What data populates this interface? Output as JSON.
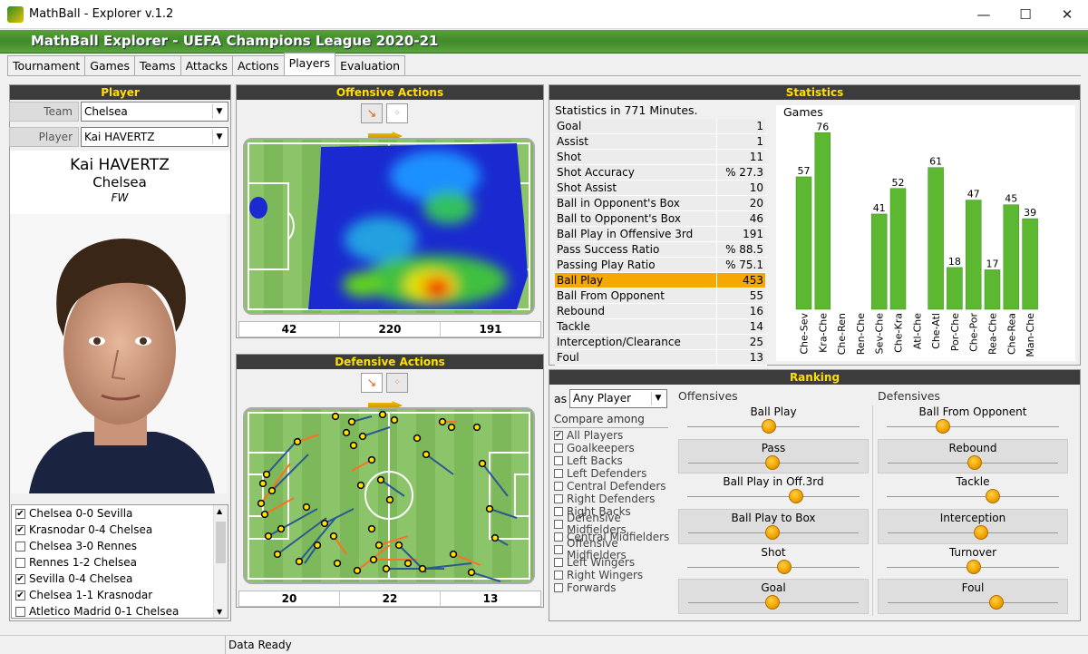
{
  "window": {
    "title": "MathBall - Explorer v.1.2",
    "minimize": "—",
    "maximize": "☐",
    "close": "✕"
  },
  "banner": {
    "title": "MathBall Explorer - UEFA Champions League 2020-21"
  },
  "tabs": [
    "Tournament",
    "Games",
    "Teams",
    "Attacks",
    "Actions",
    "Players",
    "Evaluation"
  ],
  "player_panel": {
    "header": "Player",
    "team_label": "Team",
    "team_value": "Chelsea",
    "player_label": "Player",
    "player_value": "Kai HAVERTZ",
    "name": "Kai HAVERTZ",
    "club": "Chelsea",
    "position": "FW",
    "games": [
      {
        "label": "Chelsea 0-0 Sevilla",
        "checked": true
      },
      {
        "label": "Krasnodar 0-4 Chelsea",
        "checked": true
      },
      {
        "label": "Chelsea 3-0 Rennes",
        "checked": false
      },
      {
        "label": "Rennes 1-2 Chelsea",
        "checked": false
      },
      {
        "label": "Sevilla 0-4 Chelsea",
        "checked": true
      },
      {
        "label": "Chelsea 1-1 Krasnodar",
        "checked": true
      },
      {
        "label": "Atletico Madrid 0-1 Chelsea",
        "checked": false
      }
    ]
  },
  "offensive": {
    "header": "Offensive Actions",
    "counts": [
      "42",
      "220",
      "191"
    ]
  },
  "defensive": {
    "header": "Defensive Actions",
    "counts": [
      "20",
      "22",
      "13"
    ]
  },
  "statistics": {
    "header": "Statistics",
    "subtitle": "Statistics in 771 Minutes.",
    "rows": [
      {
        "label": "Goal",
        "value": "1"
      },
      {
        "label": "Assist",
        "value": "1"
      },
      {
        "label": "Shot",
        "value": "11"
      },
      {
        "label": "Shot Accuracy",
        "value": "% 27.3"
      },
      {
        "label": "Shot Assist",
        "value": "10"
      },
      {
        "label": "Ball in Opponent's Box",
        "value": "20"
      },
      {
        "label": "Ball to Opponent's Box",
        "value": "46"
      },
      {
        "label": "Ball Play in Offensive 3rd",
        "value": "191"
      },
      {
        "label": "Pass Success Ratio",
        "value": "% 88.5"
      },
      {
        "label": "Passing Play Ratio",
        "value": "% 75.1"
      },
      {
        "label": "Ball Play",
        "value": "453",
        "highlight": true
      },
      {
        "label": "Ball From Opponent",
        "value": "55"
      },
      {
        "label": "Rebound",
        "value": "16"
      },
      {
        "label": "Tackle",
        "value": "14"
      },
      {
        "label": "Interception/Clearance",
        "value": "25"
      },
      {
        "label": "Foul",
        "value": "13"
      }
    ],
    "games_title": "Games"
  },
  "chart_data": {
    "type": "bar",
    "title": "Games",
    "categories": [
      "Che-Sev",
      "Kra-Che",
      "Che-Ren",
      "Ren-Che",
      "Sev-Che",
      "Che-Kra",
      "Atl-Che",
      "Che-Atl",
      "Por-Che",
      "Che-Por",
      "Rea-Che",
      "Che-Rea",
      "Man-Che"
    ],
    "values": [
      57,
      76,
      null,
      null,
      41,
      52,
      null,
      61,
      18,
      47,
      17,
      45,
      39
    ],
    "ylim": [
      0,
      80
    ],
    "color": "#5bb830"
  },
  "ranking": {
    "header": "Ranking",
    "as_label": "as",
    "as_value": "Any Player",
    "compare_label": "Compare among",
    "roles": [
      {
        "label": "All Players",
        "checked": true
      },
      {
        "label": "Goalkeepers",
        "checked": false
      },
      {
        "label": "Left Backs",
        "checked": false
      },
      {
        "label": "Left Defenders",
        "checked": false
      },
      {
        "label": "Central Defenders",
        "checked": false
      },
      {
        "label": "Right Defenders",
        "checked": false
      },
      {
        "label": "Right Backs",
        "checked": false
      },
      {
        "label": "Defensive Midfielders",
        "checked": false
      },
      {
        "label": "Central Midfielders",
        "checked": false
      },
      {
        "label": "Offensive Midfielders",
        "checked": false
      },
      {
        "label": "Left Wingers",
        "checked": false
      },
      {
        "label": "Right Wingers",
        "checked": false
      },
      {
        "label": "Forwards",
        "checked": false
      }
    ],
    "offensives_title": "Offensives",
    "defensives_title": "Defensives",
    "offensives": [
      {
        "label": "Ball Play",
        "level": 0.48
      },
      {
        "label": "Pass",
        "level": 0.5
      },
      {
        "label": "Ball Play in Off.3rd",
        "level": 0.66
      },
      {
        "label": "Ball Play to Box",
        "level": 0.5
      },
      {
        "label": "Shot",
        "level": 0.58
      },
      {
        "label": "Goal",
        "level": 0.5
      }
    ],
    "defensives": [
      {
        "label": "Ball From Opponent",
        "level": 0.32
      },
      {
        "label": "Rebound",
        "level": 0.52
      },
      {
        "label": "Tackle",
        "level": 0.64
      },
      {
        "label": "Interception",
        "level": 0.56
      },
      {
        "label": "Turnover",
        "level": 0.52
      },
      {
        "label": "Foul",
        "level": 0.66
      }
    ]
  },
  "status": {
    "text": "Data Ready"
  }
}
